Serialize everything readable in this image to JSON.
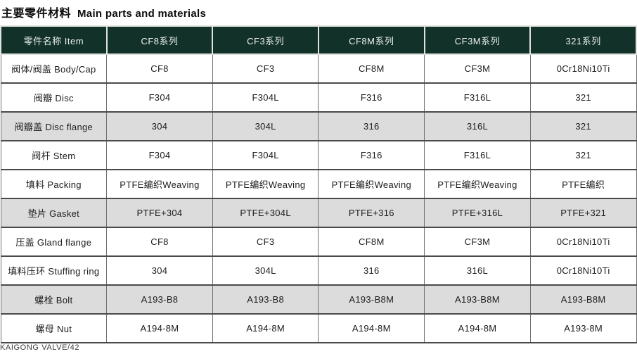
{
  "title": {
    "zh": "主要零件材料",
    "en": "Main parts and materials"
  },
  "footer": {
    "text": "KAIGONG VALVE/42"
  },
  "colors": {
    "header_bg": "#123128",
    "header_text": "#eef2ef",
    "shaded_row_bg": "#dcdcdc",
    "grid_horizontal": "#4a4a4a",
    "grid_vertical": "#6f6f6f"
  },
  "table": {
    "columns": [
      "零件名称 Item",
      "CF8系列",
      "CF3系列",
      "CF8M系列",
      "CF3M系列",
      "321系列"
    ],
    "rows": [
      {
        "item": "阀体/阀盖 Body/Cap",
        "shaded": false,
        "values": [
          "CF8",
          "CF3",
          "CF8M",
          "CF3M",
          "0Cr18Ni10Ti"
        ]
      },
      {
        "item": "阀瓣 Disc",
        "shaded": false,
        "values": [
          "F304",
          "F304L",
          "F316",
          "F316L",
          "321"
        ]
      },
      {
        "item": "阀瓣盖 Disc flange",
        "shaded": true,
        "values": [
          "304",
          "304L",
          "316",
          "316L",
          "321"
        ]
      },
      {
        "item": "阀杆 Stem",
        "shaded": false,
        "values": [
          "F304",
          "F304L",
          "F316",
          "F316L",
          "321"
        ]
      },
      {
        "item": "填料 Packing",
        "shaded": false,
        "values": [
          "PTFE编织Weaving",
          "PTFE编织Weaving",
          "PTFE编织Weaving",
          "PTFE编织Weaving",
          "PTFE编织"
        ]
      },
      {
        "item": "垫片 Gasket",
        "shaded": true,
        "values": [
          "PTFE+304",
          "PTFE+304L",
          "PTFE+316",
          "PTFE+316L",
          "PTFE+321"
        ]
      },
      {
        "item": "压盖 Gland flange",
        "shaded": false,
        "values": [
          "CF8",
          "CF3",
          "CF8M",
          "CF3M",
          "0Cr18Ni10Ti"
        ]
      },
      {
        "item": "填料压环 Stuffing ring",
        "shaded": false,
        "values": [
          "304",
          "304L",
          "316",
          "316L",
          "0Cr18Ni10Ti"
        ]
      },
      {
        "item": "螺栓 Bolt",
        "shaded": true,
        "values": [
          "A193-B8",
          "A193-B8",
          "A193-B8M",
          "A193-B8M",
          "A193-B8M"
        ]
      },
      {
        "item": "螺母 Nut",
        "shaded": false,
        "values": [
          "A194-8M",
          "A194-8M",
          "A194-8M",
          "A194-8M",
          "A193-8M"
        ]
      }
    ]
  }
}
